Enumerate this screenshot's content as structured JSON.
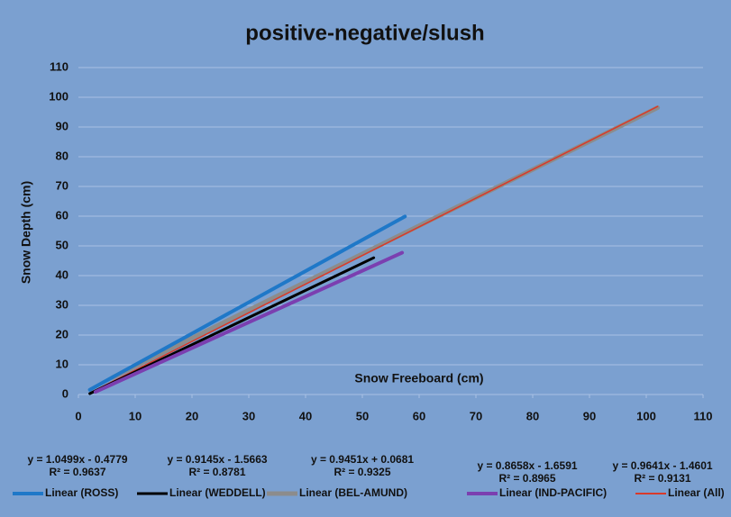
{
  "chart_data": {
    "type": "line",
    "title": "positive-negative/slush",
    "x_label": "Snow Freeboard (cm)",
    "y_label": "Snow Depth (cm)",
    "xlim": [
      0,
      110
    ],
    "xticks": [
      0,
      10,
      20,
      30,
      40,
      50,
      60,
      70,
      80,
      90,
      100,
      110
    ],
    "ylim": [
      0,
      110
    ],
    "yticks": [
      0,
      10,
      20,
      30,
      40,
      50,
      60,
      70,
      80,
      90,
      100,
      110
    ],
    "grid": true,
    "series": [
      {
        "name": "Linear (ROSS)",
        "color": "#1f78c8",
        "line_width": 4,
        "x": [
          2,
          57.5
        ],
        "values": [
          1.6,
          59.9
        ],
        "equation": "y = 1.0499x - 0.4779",
        "r2": "R² = 0.9637"
      },
      {
        "name": "Linear (WEDDELL)",
        "color": "#000000",
        "line_width": 3,
        "x": [
          2,
          52
        ],
        "values": [
          0.3,
          46.0
        ],
        "equation": "y = 0.9145x - 1.5663",
        "r2": "R² = 0.8781"
      },
      {
        "name": "Linear (BEL-AMUND)",
        "color": "#8c8c8c",
        "line_width": 5,
        "x": [
          6,
          102
        ],
        "values": [
          5.7,
          96.5
        ],
        "equation": "y = 0.9451x + 0.0681",
        "r2": "R² = 0.9325"
      },
      {
        "name": "Linear (IND-PACIFIC)",
        "color": "#7b3fb0",
        "line_width": 4,
        "x": [
          3,
          57
        ],
        "values": [
          0.9,
          47.7
        ],
        "equation": "y = 0.8658x - 1.6591",
        "r2": "R² = 0.8965"
      },
      {
        "name": "Linear (All)",
        "color": "#d83a2a",
        "line_width": 1.5,
        "x": [
          2,
          102
        ],
        "values": [
          0.5,
          96.9
        ],
        "equation": "y = 0.9641x - 1.4601",
        "r2": "R² = 0.9131"
      }
    ]
  }
}
